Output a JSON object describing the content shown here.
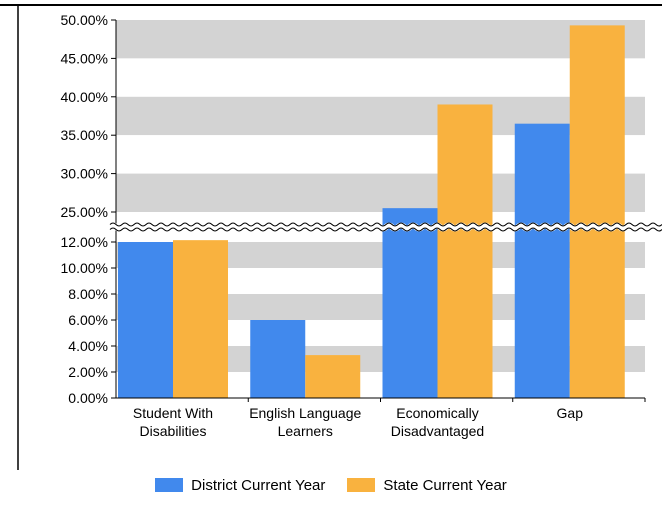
{
  "chart_data": {
    "type": "bar",
    "categories": [
      [
        "Student With",
        "Disabilities"
      ],
      [
        "English Language",
        "Learners"
      ],
      [
        "Economically",
        "Disadvantaged"
      ],
      [
        "Gap"
      ]
    ],
    "series": [
      {
        "name": "District Current Year",
        "color": "#4189ED",
        "values": [
          12.0,
          6.0,
          25.5,
          36.5
        ]
      },
      {
        "name": "State Current Year",
        "color": "#F9B23F",
        "values": [
          12.8,
          3.3,
          39.0,
          49.3
        ]
      }
    ],
    "axis_break": {
      "low_range": [
        0,
        12
      ],
      "high_range": [
        25,
        50
      ]
    },
    "y_ticks": [
      "0.00%",
      "2.00%",
      "4.00%",
      "6.00%",
      "8.00%",
      "10.00%",
      "12.00%",
      "25.00%",
      "30.00%",
      "35.00%",
      "40.00%",
      "45.00%",
      "50.00%"
    ],
    "grid": true,
    "band_colors": [
      "#D3D3D3",
      "#FFFFFF"
    ],
    "legend_position": "bottom"
  }
}
